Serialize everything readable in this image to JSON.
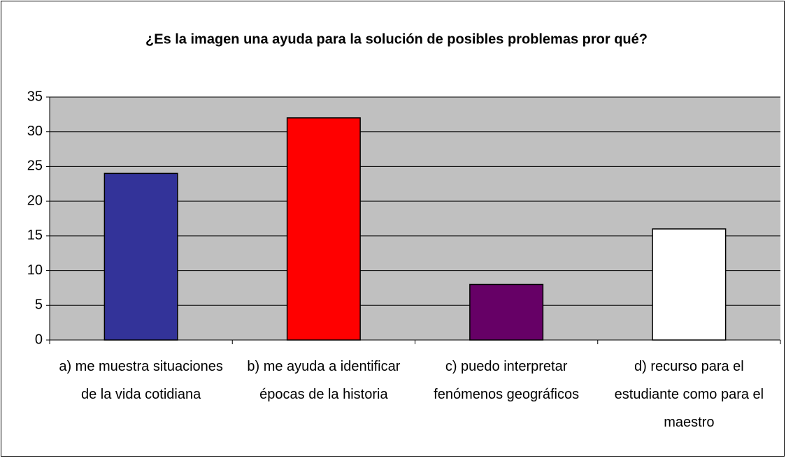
{
  "chart_data": {
    "type": "bar",
    "title": "¿Es la imagen una ayuda para la solución de posibles problemas pror qué?",
    "categories": [
      "a) me muestra situaciones de la vida cotidiana",
      "b) me ayuda a identificar épocas de la historia",
      "c) puedo interpretar fenómenos geográficos",
      "d) recurso para el estudiante como para el maestro"
    ],
    "values": [
      24,
      32,
      8,
      16
    ],
    "colors": [
      "#333399",
      "#ff0000",
      "#660066",
      "#ffffff"
    ],
    "ylim": [
      0,
      35
    ],
    "yticks": [
      0,
      5,
      10,
      15,
      20,
      25,
      30,
      35
    ],
    "grid": true
  }
}
